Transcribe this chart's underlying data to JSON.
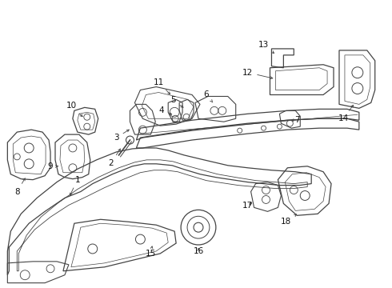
{
  "background_color": "#ffffff",
  "line_color": "#444444",
  "line_width": 0.8,
  "fig_width": 4.9,
  "fig_height": 3.6,
  "dpi": 100,
  "label_fontsize": 7.5,
  "label_color": "#111111"
}
